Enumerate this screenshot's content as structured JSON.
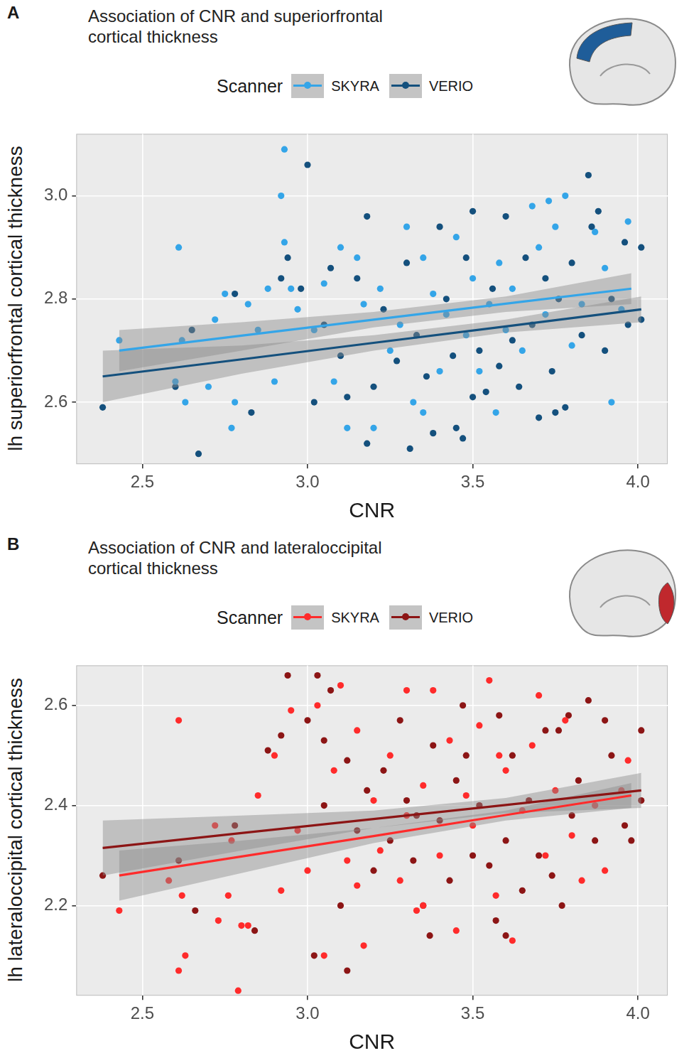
{
  "chart_data": [
    {
      "type": "scatter",
      "panel_label": "A",
      "title": "Association of CNR and superiorfrontal cortical thickness",
      "x_label": "CNR",
      "y_label": "lh superiorfrontal cortical thickness",
      "legend_title": "Scanner",
      "legend": "top",
      "grid": true,
      "xlim": [
        2.3,
        4.09
      ],
      "xticks": [
        2.5,
        {
          "value": 3,
          "label": "3.0"
        },
        3.5,
        {
          "value": 4,
          "label": "4.0"
        }
      ],
      "ylim": [
        2.48,
        3.12
      ],
      "yticks": [
        2.6,
        2.8,
        {
          "value": 3,
          "label": "3.0"
        }
      ],
      "series": [
        {
          "name": "SKYRA",
          "color": "#34a5e8",
          "x": [
            2.43,
            2.61,
            2.62,
            2.6,
            2.63,
            2.7,
            2.72,
            2.75,
            2.77,
            2.78,
            2.82,
            2.85,
            2.88,
            2.9,
            2.92,
            2.93,
            2.93,
            2.95,
            2.97,
            3.02,
            3.05,
            3.08,
            3.1,
            3.12,
            3.15,
            3.17,
            3.2,
            3.22,
            3.25,
            3.28,
            3.3,
            3.32,
            3.35,
            3.38,
            3.4,
            3.42,
            3.45,
            3.48,
            3.5,
            3.52,
            3.55,
            3.57,
            3.58,
            3.6,
            3.62,
            3.65,
            3.68,
            3.7,
            3.72,
            3.75,
            3.78,
            3.8,
            3.83,
            3.87,
            3.9,
            3.92,
            3.95,
            3.97,
            3.73,
            3.35
          ],
          "values": [
            2.72,
            2.9,
            2.72,
            2.64,
            2.6,
            2.63,
            2.76,
            2.81,
            2.55,
            2.6,
            2.79,
            2.74,
            2.82,
            2.64,
            3.0,
            3.09,
            2.91,
            2.82,
            2.78,
            2.74,
            2.83,
            2.64,
            2.9,
            2.55,
            2.88,
            2.79,
            2.55,
            2.82,
            2.7,
            2.75,
            2.94,
            2.6,
            2.88,
            2.81,
            2.66,
            2.77,
            2.92,
            2.73,
            2.84,
            2.66,
            2.79,
            2.58,
            2.87,
            2.74,
            2.82,
            2.7,
            2.98,
            2.9,
            2.77,
            2.94,
            3.0,
            2.71,
            2.79,
            2.93,
            2.86,
            2.6,
            2.78,
            2.95,
            2.99,
            2.58
          ],
          "fit": {
            "x": [
              2.43,
              2.8,
              3.2,
              3.6,
              3.98
            ],
            "values": [
              2.7,
              2.729,
              2.76,
              2.791,
              2.82
            ],
            "ci_lower": [
              2.66,
              2.7,
              2.745,
              2.775,
              2.79
            ],
            "ci_upper": [
              2.74,
              2.755,
              2.775,
              2.805,
              2.85
            ]
          }
        },
        {
          "name": "VERIO",
          "color": "#14507d",
          "x": [
            2.38,
            2.6,
            2.65,
            2.67,
            2.78,
            2.83,
            2.92,
            2.94,
            3.0,
            2.98,
            3.02,
            3.05,
            3.07,
            3.1,
            3.12,
            3.15,
            3.18,
            3.18,
            3.2,
            3.23,
            3.27,
            3.3,
            3.31,
            3.33,
            3.36,
            3.38,
            3.4,
            3.42,
            3.44,
            3.45,
            3.47,
            3.48,
            3.5,
            3.52,
            3.54,
            3.56,
            3.58,
            3.6,
            3.62,
            3.64,
            3.66,
            3.68,
            3.7,
            3.72,
            3.74,
            3.76,
            3.78,
            3.8,
            3.83,
            3.85,
            3.86,
            3.88,
            3.9,
            3.92,
            3.96,
            4.01,
            4.01,
            3.97,
            3.75,
            3.5
          ],
          "values": [
            2.59,
            2.63,
            2.74,
            2.5,
            2.81,
            2.58,
            2.84,
            2.88,
            3.06,
            2.82,
            2.6,
            2.75,
            2.86,
            2.69,
            2.61,
            2.84,
            2.96,
            2.52,
            2.63,
            2.78,
            2.68,
            2.87,
            2.51,
            2.73,
            2.65,
            2.54,
            2.94,
            2.8,
            2.69,
            2.55,
            2.53,
            2.88,
            2.97,
            2.7,
            2.62,
            2.82,
            2.67,
            2.96,
            2.72,
            2.63,
            2.88,
            2.75,
            2.57,
            2.84,
            2.66,
            2.8,
            2.59,
            2.87,
            2.73,
            3.04,
            2.94,
            2.97,
            2.7,
            2.8,
            2.91,
            2.9,
            2.76,
            2.75,
            2.58,
            2.61
          ],
          "fit": {
            "x": [
              2.38,
              2.8,
              3.2,
              3.6,
              4.01
            ],
            "values": [
              2.65,
              2.683,
              2.715,
              2.747,
              2.78
            ],
            "ci_lower": [
              2.6,
              2.655,
              2.7,
              2.735,
              2.755
            ],
            "ci_upper": [
              2.7,
              2.71,
              2.73,
              2.76,
              2.805
            ]
          }
        }
      ]
    },
    {
      "type": "scatter",
      "panel_label": "B",
      "title": "Association of CNR and lateraloccipital cortical thickness",
      "x_label": "CNR",
      "y_label": "lh lateraloccipital cortical thickness",
      "legend_title": "Scanner",
      "legend": "top",
      "grid": true,
      "xlim": [
        2.3,
        4.09
      ],
      "xticks": [
        2.5,
        {
          "value": 3,
          "label": "3.0"
        },
        3.5,
        {
          "value": 4,
          "label": "4.0"
        }
      ],
      "ylim": [
        2.02,
        2.68
      ],
      "yticks": [
        2.2,
        2.4,
        2.6
      ],
      "series": [
        {
          "name": "SKYRA",
          "color": "#ff2b2b",
          "x": [
            2.43,
            2.58,
            2.61,
            2.61,
            2.63,
            2.62,
            2.72,
            2.73,
            2.76,
            2.77,
            2.79,
            2.8,
            2.82,
            2.85,
            2.9,
            2.92,
            2.95,
            2.97,
            3.0,
            3.03,
            3.05,
            3.08,
            3.1,
            3.12,
            3.15,
            3.17,
            3.2,
            3.22,
            3.25,
            3.28,
            3.3,
            3.33,
            3.35,
            3.38,
            3.4,
            3.43,
            3.45,
            3.48,
            3.5,
            3.52,
            3.55,
            3.57,
            3.6,
            3.62,
            3.65,
            3.68,
            3.7,
            3.72,
            3.75,
            3.78,
            3.8,
            3.83,
            3.87,
            3.9,
            3.97,
            3.95,
            3.35,
            3.15,
            3.58,
            3.3
          ],
          "values": [
            2.19,
            2.25,
            2.07,
            2.57,
            2.1,
            2.22,
            2.36,
            2.17,
            2.22,
            2.33,
            2.03,
            2.16,
            2.16,
            2.42,
            2.5,
            2.23,
            2.59,
            2.35,
            2.27,
            2.6,
            2.1,
            2.47,
            2.64,
            2.29,
            2.55,
            2.12,
            2.41,
            2.31,
            2.5,
            2.25,
            2.63,
            2.19,
            2.44,
            2.63,
            2.3,
            2.53,
            2.15,
            2.42,
            2.36,
            2.56,
            2.65,
            2.22,
            2.47,
            2.13,
            2.39,
            2.52,
            2.62,
            2.3,
            2.43,
            2.57,
            2.34,
            2.25,
            2.4,
            2.27,
            2.49,
            2.43,
            2.2,
            2.24,
            2.5,
            2.38
          ],
          "fit": {
            "x": [
              2.43,
              2.8,
              3.2,
              3.6,
              3.98
            ],
            "values": [
              2.26,
              2.298,
              2.339,
              2.381,
              2.42
            ],
            "ci_lower": [
              2.21,
              2.265,
              2.325,
              2.37,
              2.395
            ],
            "ci_upper": [
              2.31,
              2.33,
              2.355,
              2.39,
              2.445
            ]
          }
        },
        {
          "name": "VERIO",
          "color": "#8c1515",
          "x": [
            2.38,
            2.61,
            2.66,
            2.78,
            2.84,
            2.88,
            2.92,
            2.94,
            3.0,
            3.02,
            3.03,
            3.05,
            3.07,
            3.1,
            3.12,
            3.12,
            3.15,
            3.18,
            3.2,
            3.23,
            3.25,
            3.28,
            3.3,
            3.32,
            3.35,
            3.37,
            3.38,
            3.4,
            3.43,
            3.45,
            3.47,
            3.5,
            3.52,
            3.55,
            3.57,
            3.58,
            3.6,
            3.62,
            3.65,
            3.67,
            3.7,
            3.72,
            3.74,
            3.77,
            3.79,
            3.8,
            3.82,
            3.85,
            3.87,
            3.9,
            3.92,
            3.96,
            3.98,
            4.01,
            4.01,
            3.76,
            3.48,
            3.33,
            3.6,
            3.05
          ],
          "values": [
            2.26,
            2.29,
            2.19,
            2.36,
            2.15,
            2.51,
            2.54,
            2.66,
            2.57,
            2.1,
            2.66,
            2.4,
            2.63,
            2.2,
            2.07,
            2.49,
            2.35,
            2.43,
            2.27,
            2.47,
            2.33,
            2.57,
            2.41,
            2.29,
            2.2,
            2.14,
            2.52,
            2.37,
            2.25,
            2.45,
            2.6,
            2.3,
            2.4,
            2.28,
            2.17,
            2.58,
            2.33,
            2.5,
            2.23,
            2.41,
            2.3,
            2.55,
            2.26,
            2.2,
            2.58,
            2.38,
            2.45,
            2.61,
            2.33,
            2.57,
            2.5,
            2.36,
            2.33,
            2.55,
            2.41,
            2.55,
            2.5,
            2.38,
            2.14,
            2.53
          ],
          "fit": {
            "x": [
              2.38,
              2.8,
              3.2,
              3.6,
              4.01
            ],
            "values": [
              2.315,
              2.345,
              2.373,
              2.401,
              2.43
            ],
            "ci_lower": [
              2.26,
              2.31,
              2.355,
              2.385,
              2.395
            ],
            "ci_upper": [
              2.37,
              2.38,
              2.39,
              2.415,
              2.465
            ]
          }
        }
      ]
    }
  ]
}
